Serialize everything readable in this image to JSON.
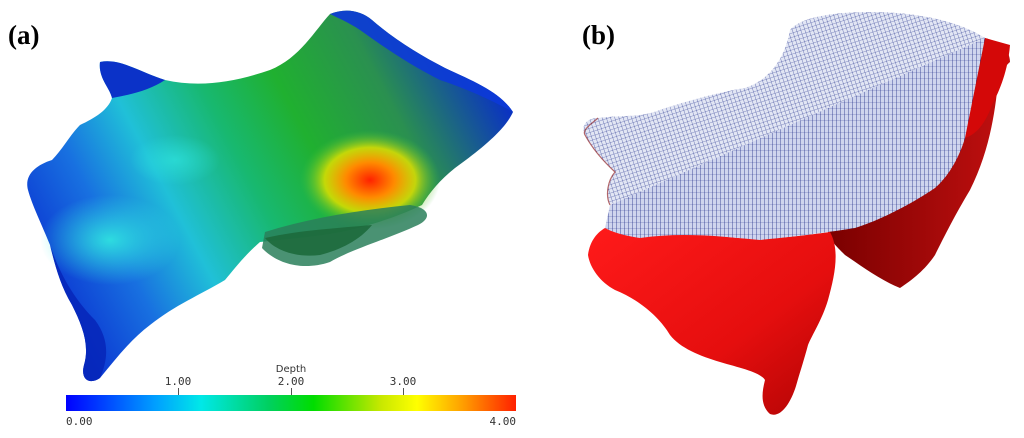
{
  "panels": {
    "a": {
      "label": "(a)"
    },
    "b": {
      "label": "(b)"
    }
  },
  "colorbar": {
    "title": "Depth",
    "min_label": "0.00",
    "max_label": "4.00",
    "tick_labels": [
      "1.00",
      "2.00",
      "3.00"
    ],
    "colors": [
      "#0000ff",
      "#00a0ff",
      "#00e8e8",
      "#00d060",
      "#00dd00",
      "#c8e800",
      "#ffff00",
      "#ffa000",
      "#ff2000"
    ]
  },
  "colors": {
    "mesh_top": "#dde2f2",
    "mesh_lines": "#1f2d8a",
    "wall_red": "#ee1111",
    "wall_dark_red": "#8f0000"
  }
}
